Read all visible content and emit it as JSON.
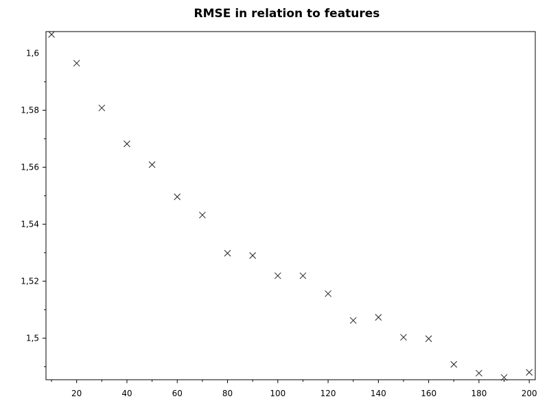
{
  "chart_data": {
    "type": "scatter",
    "title": "RMSE in relation to features",
    "xlabel": "",
    "ylabel": "",
    "marker": "x",
    "grid": false,
    "xlim": [
      7.8,
      202.4
    ],
    "ylim": [
      1.4854,
      1.6076
    ],
    "x_ticks": [
      {
        "value": 20,
        "label": "20"
      },
      {
        "value": 40,
        "label": "40"
      },
      {
        "value": 60,
        "label": "60"
      },
      {
        "value": 80,
        "label": "80"
      },
      {
        "value": 100,
        "label": "100"
      },
      {
        "value": 120,
        "label": "120"
      },
      {
        "value": 140,
        "label": "140"
      },
      {
        "value": 160,
        "label": "160"
      },
      {
        "value": 180,
        "label": "180"
      },
      {
        "value": 200,
        "label": "200"
      }
    ],
    "y_ticks": [
      {
        "value": 1.5,
        "label": "1,5"
      },
      {
        "value": 1.52,
        "label": "1,52"
      },
      {
        "value": 1.54,
        "label": "1,54"
      },
      {
        "value": 1.56,
        "label": "1,56"
      },
      {
        "value": 1.58,
        "label": "1,58"
      },
      {
        "value": 1.6,
        "label": "1,6"
      }
    ],
    "points": [
      {
        "x": 10,
        "y": 1.6066
      },
      {
        "x": 20,
        "y": 1.5965
      },
      {
        "x": 30,
        "y": 1.5808
      },
      {
        "x": 40,
        "y": 1.5682
      },
      {
        "x": 50,
        "y": 1.5609
      },
      {
        "x": 60,
        "y": 1.5496
      },
      {
        "x": 70,
        "y": 1.5432
      },
      {
        "x": 80,
        "y": 1.5298
      },
      {
        "x": 90,
        "y": 1.529
      },
      {
        "x": 100,
        "y": 1.5219
      },
      {
        "x": 110,
        "y": 1.5219
      },
      {
        "x": 120,
        "y": 1.5156
      },
      {
        "x": 130,
        "y": 1.5062
      },
      {
        "x": 140,
        "y": 1.5073
      },
      {
        "x": 150,
        "y": 1.5003
      },
      {
        "x": 160,
        "y": 1.4998
      },
      {
        "x": 170,
        "y": 1.4908
      },
      {
        "x": 180,
        "y": 1.4877
      },
      {
        "x": 190,
        "y": 1.4862
      },
      {
        "x": 200,
        "y": 1.488
      }
    ]
  }
}
